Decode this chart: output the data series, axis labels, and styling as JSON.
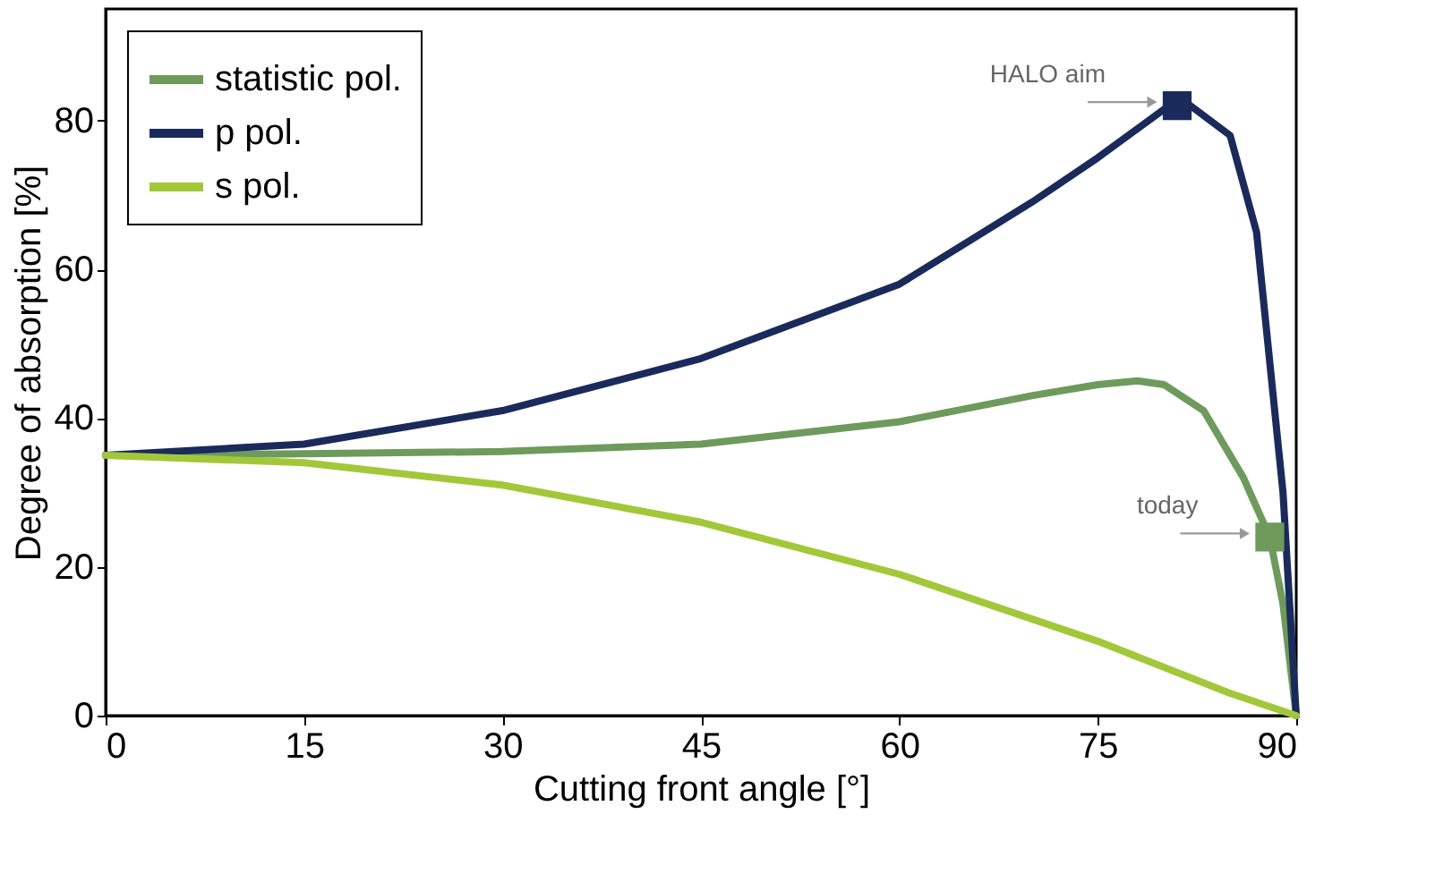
{
  "chart_data": {
    "type": "line",
    "xlabel": "Cutting front angle [°]",
    "ylabel": "Degree of absorption [%]",
    "xlim": [
      0,
      90
    ],
    "ylim": [
      0,
      95
    ],
    "xticks": [
      0,
      15,
      30,
      45,
      60,
      75,
      90
    ],
    "yticks": [
      0,
      20,
      40,
      60,
      80
    ],
    "grid": false,
    "legend": "top left",
    "line_style": "solid",
    "series": [
      {
        "name": "statistic pol.",
        "color": "#6e9a5c",
        "x": [
          0,
          15,
          30,
          45,
          60,
          70,
          75,
          78,
          80,
          83,
          86,
          88,
          89,
          90
        ],
        "values": [
          35,
          35.2,
          35.5,
          36.5,
          39.5,
          43,
          44.5,
          45,
          44.5,
          41,
          32,
          24,
          15,
          0
        ]
      },
      {
        "name": "p pol.",
        "color": "#1a2a5a",
        "x": [
          0,
          15,
          30,
          45,
          60,
          70,
          75,
          80,
          82,
          85,
          87,
          89,
          90
        ],
        "values": [
          35,
          36.5,
          41,
          48,
          58,
          69,
          75,
          81.5,
          82,
          78,
          65,
          30,
          0
        ]
      },
      {
        "name": "s pol.",
        "color": "#a2c83a",
        "x": [
          0,
          15,
          30,
          45,
          60,
          75,
          85,
          90
        ],
        "values": [
          35,
          34,
          31,
          26,
          19,
          10,
          3,
          0
        ]
      },
      {
        "type": "scatter",
        "marker": "square",
        "color": "#1a2a5a",
        "x": [
          81
        ],
        "values": [
          82
        ]
      },
      {
        "type": "scatter",
        "marker": "square",
        "color": "#6e9a5c",
        "x": [
          88
        ],
        "values": [
          24
        ]
      }
    ],
    "annotations": [
      {
        "text": "HALO aim",
        "x": 81,
        "y": 82
      },
      {
        "text": "today",
        "x": 88,
        "y": 24
      }
    ]
  }
}
